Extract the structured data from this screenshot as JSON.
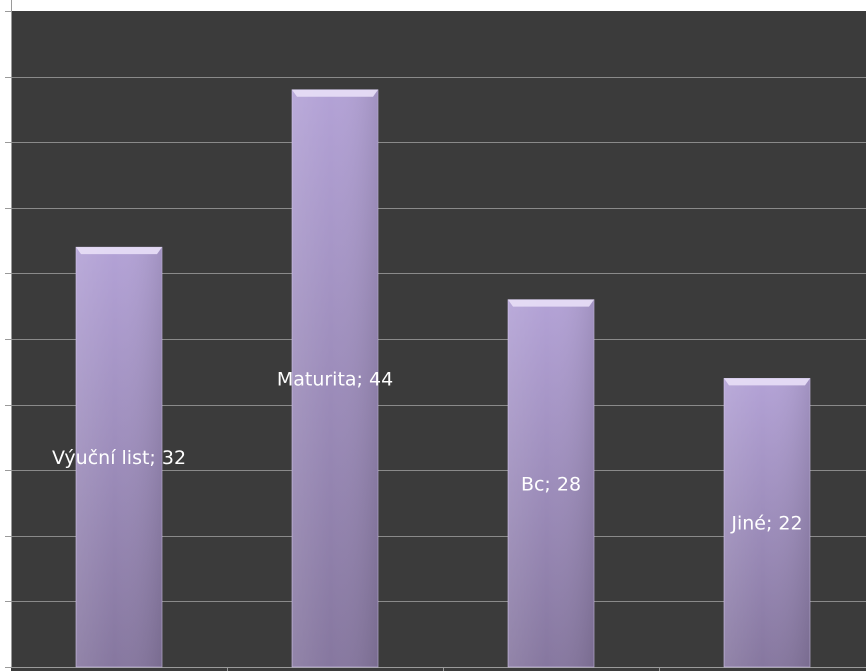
{
  "chart_data": {
    "type": "bar",
    "categories": [
      "Výuční list",
      "Maturita",
      "Bc",
      "Jiné"
    ],
    "values": [
      32,
      44,
      28,
      22
    ],
    "data_labels": [
      "Výuční list; 32",
      "Maturita; 44",
      "Bc; 28",
      "Jiné; 22"
    ],
    "ylim": [
      0,
      50
    ],
    "grid": true,
    "legend": "none",
    "colors": {
      "plot_background": "#3b3b3b",
      "gridline": "#8a8a8a",
      "bar_top": "#b3a2d6",
      "bar_bottom": "#86779f",
      "bar_cap": "#e6dcf6",
      "bar_edge": "#cfc2ea"
    }
  }
}
